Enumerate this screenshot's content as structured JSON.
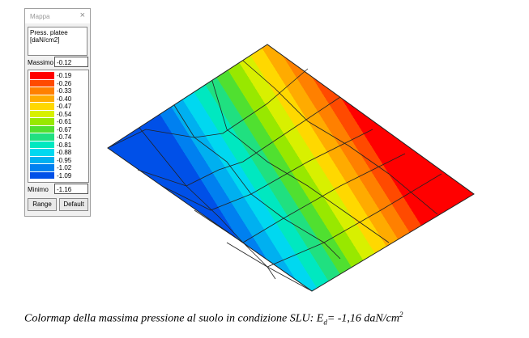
{
  "panel": {
    "title": "Mappa",
    "close": "×",
    "description": [
      "Press. platee",
      "[daN/cm2]"
    ],
    "max_label": "Massimo",
    "max_value": "-0.12",
    "legend": [
      {
        "label": "-0.19",
        "color": "#ff0000"
      },
      {
        "label": "-0.26",
        "color": "#ff4a00"
      },
      {
        "label": "-0.33",
        "color": "#ff8000"
      },
      {
        "label": "-0.40",
        "color": "#ffab00"
      },
      {
        "label": "-0.47",
        "color": "#ffd800"
      },
      {
        "label": "-0.54",
        "color": "#d8f000"
      },
      {
        "label": "-0.61",
        "color": "#98e800"
      },
      {
        "label": "-0.67",
        "color": "#50e030"
      },
      {
        "label": "-0.74",
        "color": "#20e080"
      },
      {
        "label": "-0.81",
        "color": "#00e8c0"
      },
      {
        "label": "-0.88",
        "color": "#00d8f0"
      },
      {
        "label": "-0.95",
        "color": "#00b0f0"
      },
      {
        "label": "-1.02",
        "color": "#0080f0"
      },
      {
        "label": "-1.09",
        "color": "#0050e8"
      }
    ],
    "min_label": "Minimo",
    "min_value": "-1.16",
    "buttons": [
      "Range",
      "Default"
    ]
  },
  "caption": {
    "text": "Colormap della massima pressione al suolo in condizione SLU: E",
    "subscript": "d",
    "text2": "= -1,16 daN/cm",
    "superscript": "2"
  }
}
